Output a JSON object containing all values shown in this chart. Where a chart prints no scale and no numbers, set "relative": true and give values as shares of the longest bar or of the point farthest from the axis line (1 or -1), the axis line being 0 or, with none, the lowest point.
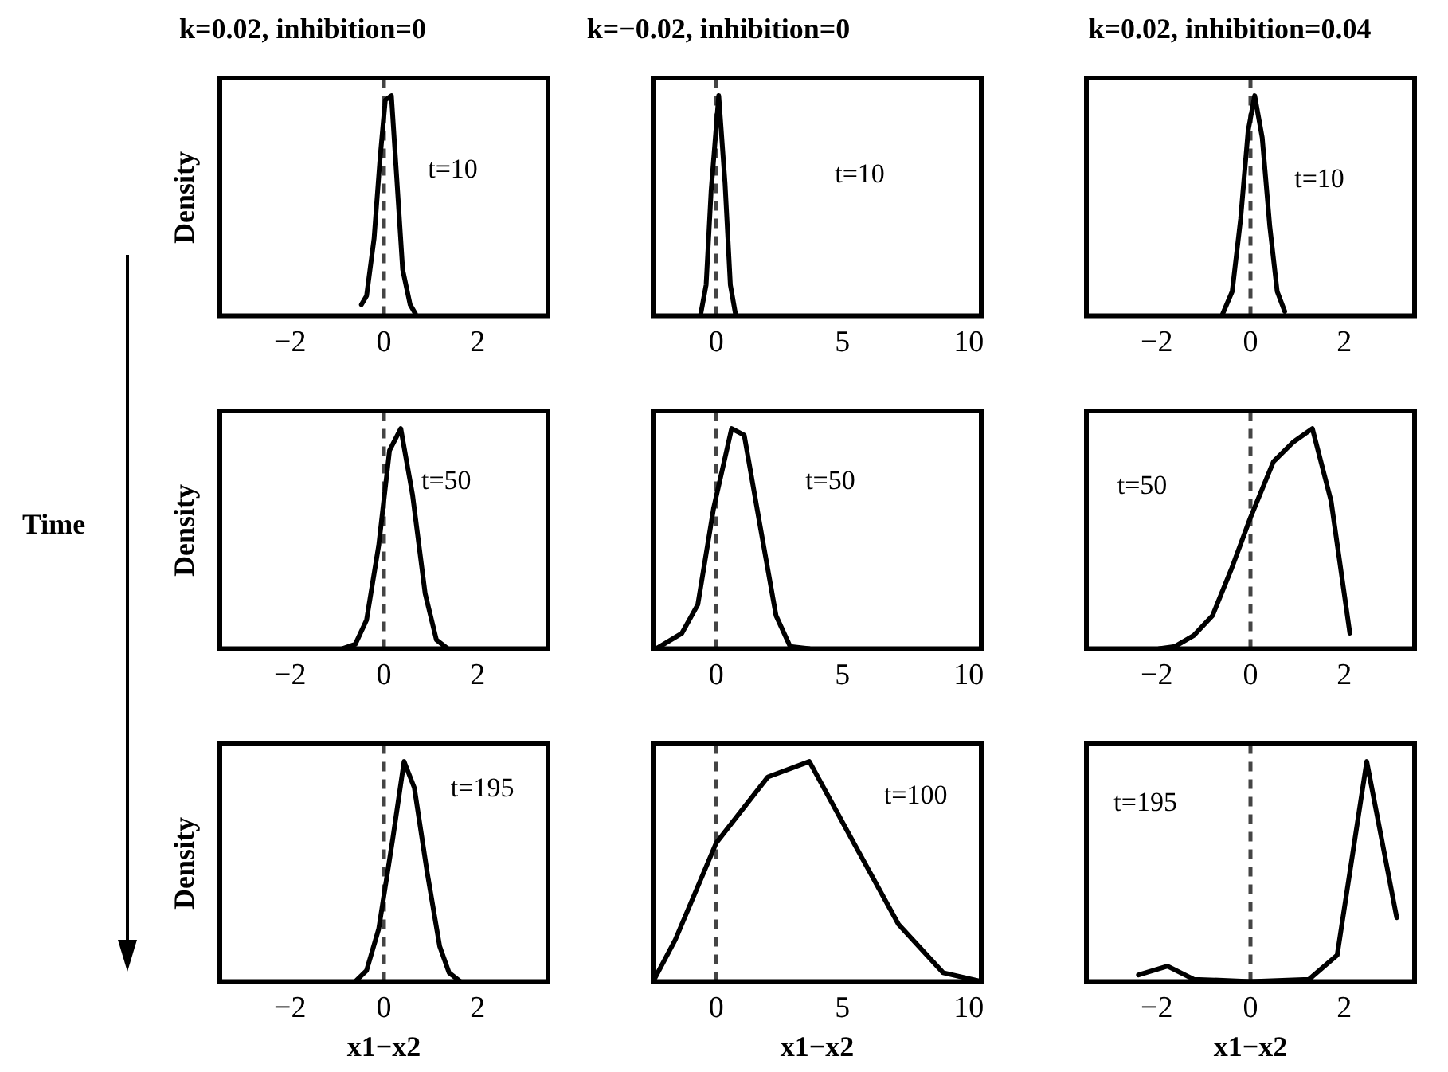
{
  "chart_data": [
    {
      "type": "line",
      "title": "k=0.02, inhibition=0",
      "ylabel": "Density",
      "relative": true,
      "tick_labels": "x",
      "marker": "none",
      "xlim": [
        -3.5,
        3.5
      ],
      "xticks": [
        -2,
        0,
        2
      ],
      "ref_lines": [
        {
          "axis": "x",
          "value": 0,
          "color": "#444444",
          "line_style": "dashed"
        }
      ],
      "annotations": [
        "t=10"
      ],
      "x": [
        -0.48,
        -0.37,
        -0.21,
        -0.08,
        0.03,
        0.16,
        0.27,
        0.4,
        0.56,
        0.67
      ],
      "series": [
        {
          "color": "#000000",
          "values": [
            0.05,
            0.09,
            0.35,
            0.72,
            0.98,
            1,
            0.64,
            0.21,
            0.05,
            0.01
          ]
        }
      ]
    },
    {
      "type": "line",
      "title": "k=−0.02, inhibition=0",
      "relative": true,
      "tick_labels": "x",
      "marker": "none",
      "xlim": [
        -2.5,
        10.5
      ],
      "xticks": [
        0,
        5,
        10
      ],
      "ref_lines": [
        {
          "axis": "x",
          "value": 0,
          "color": "#444444",
          "line_style": "dashed"
        }
      ],
      "annotations": [
        "t=10"
      ],
      "x": [
        -0.61,
        -0.4,
        -0.2,
        0.1,
        0.35,
        0.56,
        0.76
      ],
      "series": [
        {
          "color": "#000000",
          "values": [
            0.01,
            0.14,
            0.57,
            1,
            0.6,
            0.14,
            0.01
          ]
        }
      ]
    },
    {
      "type": "line",
      "title": "k=0.02, inhibition=0.04",
      "relative": true,
      "tick_labels": "x",
      "marker": "none",
      "xlim": [
        -3.5,
        3.5
      ],
      "xticks": [
        -2,
        0,
        2
      ],
      "ref_lines": [
        {
          "axis": "x",
          "value": 0,
          "color": "#444444",
          "line_style": "dashed"
        }
      ],
      "annotations": [
        "t=10"
      ],
      "x": [
        -0.61,
        -0.39,
        -0.21,
        -0.05,
        0.09,
        0.25,
        0.41,
        0.57,
        0.73
      ],
      "series": [
        {
          "color": "#000000",
          "values": [
            0,
            0.11,
            0.44,
            0.84,
            1,
            0.81,
            0.41,
            0.11,
            0.02
          ]
        }
      ]
    },
    {
      "type": "line",
      "ylabel": "Density",
      "relative": true,
      "tick_labels": "x",
      "marker": "none",
      "xlim": [
        -3.5,
        3.5
      ],
      "xticks": [
        -2,
        0,
        2
      ],
      "ref_lines": [
        {
          "axis": "x",
          "value": 0,
          "color": "#444444",
          "line_style": "dashed"
        }
      ],
      "annotations": [
        "t=50",
        "Time"
      ],
      "x": [
        -0.88,
        -0.61,
        -0.37,
        -0.11,
        0.12,
        0.36,
        0.61,
        0.88,
        1.12,
        1.36
      ],
      "series": [
        {
          "color": "#000000",
          "values": [
            0,
            0.02,
            0.13,
            0.47,
            0.9,
            1,
            0.7,
            0.25,
            0.04,
            0
          ]
        }
      ]
    },
    {
      "type": "line",
      "relative": true,
      "tick_labels": "x",
      "marker": "none",
      "xlim": [
        -2.5,
        10.5
      ],
      "xticks": [
        0,
        5,
        10
      ],
      "ref_lines": [
        {
          "axis": "x",
          "value": 0,
          "color": "#444444",
          "line_style": "dashed"
        }
      ],
      "annotations": [
        "t=50"
      ],
      "x": [
        -2.37,
        -1.36,
        -0.73,
        -0.1,
        0.61,
        1.11,
        1.72,
        2.37,
        2.93,
        3.69
      ],
      "series": [
        {
          "color": "#000000",
          "values": [
            0,
            0.07,
            0.2,
            0.64,
            1,
            0.97,
            0.57,
            0.15,
            0.01,
            0
          ]
        }
      ]
    },
    {
      "type": "line",
      "relative": true,
      "tick_labels": "x",
      "marker": "none",
      "xlim": [
        -3.5,
        3.5
      ],
      "xticks": [
        -2,
        0,
        2
      ],
      "ref_lines": [
        {
          "axis": "x",
          "value": 0,
          "color": "#444444",
          "line_style": "dashed"
        }
      ],
      "annotations": [
        "t=50"
      ],
      "x": [
        -1.95,
        -1.61,
        -1.21,
        -0.81,
        -0.41,
        -0.01,
        0.49,
        0.92,
        1.32,
        1.72,
        2.12
      ],
      "series": [
        {
          "color": "#000000",
          "values": [
            0,
            0.01,
            0.06,
            0.15,
            0.36,
            0.59,
            0.85,
            0.94,
            1,
            0.67,
            0.07
          ]
        }
      ]
    },
    {
      "type": "line",
      "ylabel": "Density",
      "xlabel": "x1−x2",
      "relative": true,
      "tick_labels": "x",
      "marker": "none",
      "xlim": [
        -3.5,
        3.5
      ],
      "xticks": [
        -2,
        0,
        2
      ],
      "ref_lines": [
        {
          "axis": "x",
          "value": 0,
          "color": "#444444",
          "line_style": "dashed"
        }
      ],
      "annotations": [
        "t=195"
      ],
      "x": [
        -0.61,
        -0.37,
        -0.11,
        0.19,
        0.43,
        0.65,
        0.92,
        1.19,
        1.39,
        1.63
      ],
      "series": [
        {
          "color": "#000000",
          "values": [
            0,
            0.05,
            0.24,
            0.65,
            1,
            0.88,
            0.5,
            0.16,
            0.04,
            0
          ]
        }
      ]
    },
    {
      "type": "line",
      "xlabel": "x1−x2",
      "relative": true,
      "tick_labels": "x",
      "marker": "none",
      "xlim": [
        -2.5,
        10.5
      ],
      "xticks": [
        0,
        5,
        10
      ],
      "ref_lines": [
        {
          "axis": "x",
          "value": 0,
          "color": "#444444",
          "line_style": "dashed"
        }
      ],
      "annotations": [
        "t=100"
      ],
      "x": [
        -2.5,
        -1.62,
        0,
        2.05,
        3.69,
        5.45,
        7.22,
        8.99,
        10.5
      ],
      "series": [
        {
          "color": "#000000",
          "values": [
            0,
            0.19,
            0.63,
            0.93,
            1,
            0.63,
            0.26,
            0.04,
            0
          ]
        }
      ]
    },
    {
      "type": "line",
      "xlabel": "x1−x2",
      "relative": true,
      "tick_labels": "x",
      "marker": "none",
      "xlim": [
        -3.5,
        3.5
      ],
      "xticks": [
        -2,
        0,
        2
      ],
      "ref_lines": [
        {
          "axis": "x",
          "value": 0,
          "color": "#444444",
          "line_style": "dashed"
        }
      ],
      "annotations": [
        "t=195"
      ],
      "x": [
        -2.39,
        -1.77,
        -1.21,
        0,
        1.25,
        1.85,
        2.48,
        3.12
      ],
      "series": [
        {
          "color": "#000000",
          "values": [
            0.03,
            0.07,
            0.01,
            0,
            0.01,
            0.12,
            1,
            0.29
          ]
        }
      ]
    }
  ]
}
